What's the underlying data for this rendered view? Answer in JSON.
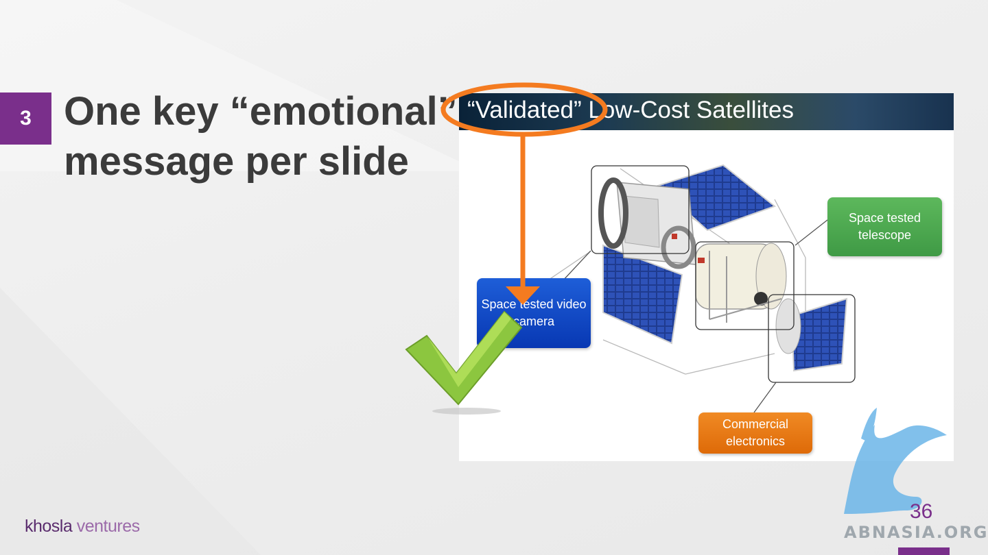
{
  "slide": {
    "number": "3",
    "headline_line1": "One key “emotional”",
    "headline_line2": "message per slide",
    "page_number": "36"
  },
  "embedded_slide": {
    "title": "“Validated” Low-Cost Satellites",
    "callouts": {
      "camera": "Space tested video camera",
      "telescope": "Space tested telescope",
      "electronics": "Commercial electronics"
    }
  },
  "footer": {
    "logo_part1": "khosla",
    "logo_part2": "ventures",
    "watermark": "ABNASIA.ORG"
  },
  "colors": {
    "accent": "#7a2f8b",
    "highlight": "#f47b20",
    "check": "#8cc63f"
  },
  "icons": [
    "checkmark-icon",
    "satellite-illustration",
    "griffin-logo"
  ]
}
